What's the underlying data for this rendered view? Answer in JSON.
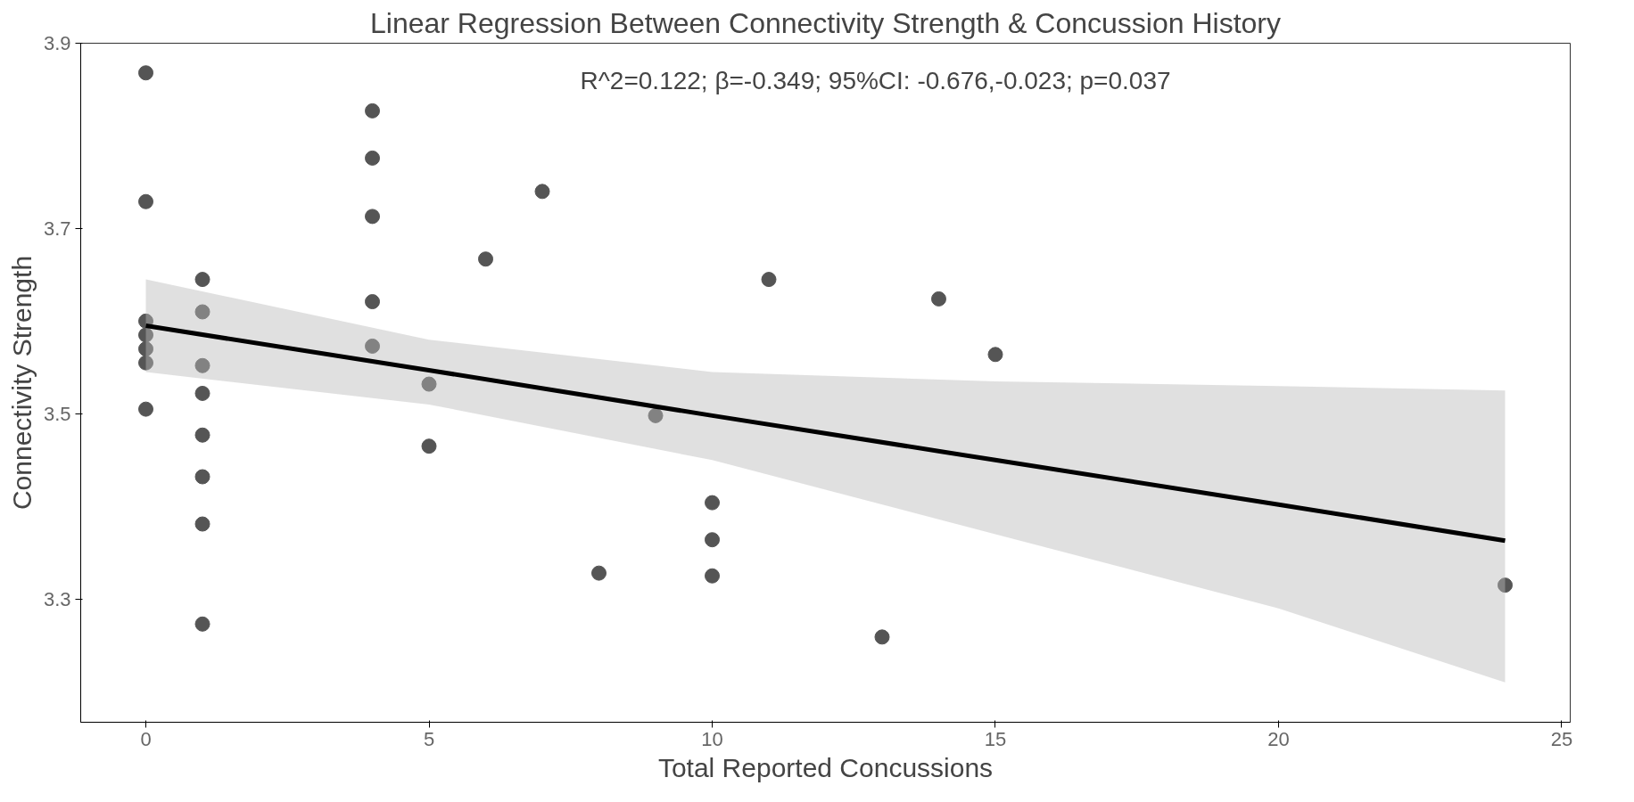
{
  "chart_data": {
    "type": "scatter",
    "title": "Linear Regression Between Connectivity Strength & Concussion History",
    "xlabel": "Total Reported Concussions",
    "ylabel": "Connectivity Strength",
    "annotations": [
      "R^2=0.122; β=-0.349; 95%CI: -0.676,-0.023; p=0.037"
    ],
    "xlim": [
      -1.15,
      25.15
    ],
    "ylim": [
      3.167,
      3.9
    ],
    "xticks": [
      0,
      5,
      10,
      15,
      20,
      25
    ],
    "yticks": [
      3.3,
      3.5,
      3.7,
      3.9
    ],
    "grid": false,
    "marker": "circle",
    "series": [
      {
        "color": "#555555",
        "x": [
          0,
          0,
          0,
          0,
          0,
          0,
          0,
          1,
          1,
          1,
          1,
          1,
          1,
          1,
          1,
          4,
          4,
          4,
          4,
          4,
          5,
          5,
          6,
          7,
          8,
          9,
          10,
          10,
          10,
          11,
          13,
          14,
          15,
          24
        ],
        "values": [
          3.868,
          3.729,
          3.6,
          3.585,
          3.57,
          3.555,
          3.505,
          3.645,
          3.61,
          3.552,
          3.522,
          3.477,
          3.432,
          3.381,
          3.273,
          3.827,
          3.776,
          3.713,
          3.621,
          3.573,
          3.532,
          3.465,
          3.667,
          3.74,
          3.328,
          3.498,
          3.404,
          3.364,
          3.325,
          3.645,
          3.259,
          3.624,
          3.564,
          3.315
        ]
      },
      {
        "type": "line",
        "marker": "none",
        "color": "#000000",
        "line_style": "solid",
        "x": [
          0,
          5,
          10,
          15,
          20,
          24
        ],
        "values": [
          3.595,
          3.547,
          3.498,
          3.45,
          3.402,
          3.363
        ],
        "lower": [
          3.545,
          3.51,
          3.45,
          3.37,
          3.29,
          3.21
        ],
        "upper": [
          3.645,
          3.58,
          3.545,
          3.535,
          3.53,
          3.525
        ]
      }
    ]
  }
}
